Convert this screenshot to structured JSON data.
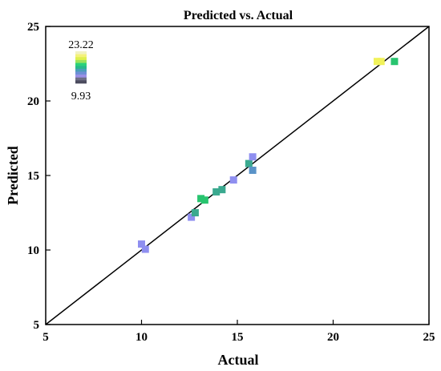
{
  "chart_data": {
    "type": "scatter",
    "title": "Predicted vs. Actual",
    "xlabel": "Actual",
    "ylabel": "Predicted",
    "xlim": [
      5,
      25
    ],
    "ylim": [
      5,
      25
    ],
    "xticks": [
      "5",
      "10",
      "15",
      "20",
      "25"
    ],
    "yticks": [
      "5",
      "10",
      "15",
      "20",
      "25"
    ],
    "reference_line": {
      "from": [
        5,
        5
      ],
      "to": [
        25,
        25
      ],
      "color": "#000000"
    },
    "legend": {
      "placement": "top-left",
      "type": "color-scale",
      "max_label": "23.22",
      "min_label": "9.93",
      "colors": [
        "#f2f2c2",
        "#f4f27a",
        "#dff04d",
        "#9be35c",
        "#2ad27a",
        "#27b98a",
        "#4a9fb8",
        "#6e8fd6",
        "#9a8fe6",
        "#6e6e86",
        "#4b4b5e"
      ]
    },
    "points": [
      {
        "x": 10.0,
        "y": 10.4,
        "color": "#8f8ff0"
      },
      {
        "x": 10.2,
        "y": 10.05,
        "color": "#8f8ff0"
      },
      {
        "x": 12.6,
        "y": 12.2,
        "color": "#8f8ff0"
      },
      {
        "x": 12.8,
        "y": 12.5,
        "color": "#3aa98f"
      },
      {
        "x": 13.1,
        "y": 13.45,
        "color": "#28c46f"
      },
      {
        "x": 13.3,
        "y": 13.35,
        "color": "#28c46f"
      },
      {
        "x": 13.9,
        "y": 13.9,
        "color": "#3aa98f"
      },
      {
        "x": 14.2,
        "y": 14.05,
        "color": "#3aa98f"
      },
      {
        "x": 14.8,
        "y": 14.7,
        "color": "#8f8ff0"
      },
      {
        "x": 15.6,
        "y": 15.8,
        "color": "#3aa98f"
      },
      {
        "x": 15.8,
        "y": 16.25,
        "color": "#8f8ff0"
      },
      {
        "x": 15.8,
        "y": 15.35,
        "color": "#5a93c8"
      },
      {
        "x": 22.3,
        "y": 22.65,
        "color": "#f1f25a"
      },
      {
        "x": 22.5,
        "y": 22.65,
        "color": "#f1f25a"
      },
      {
        "x": 23.2,
        "y": 22.65,
        "color": "#28c46f"
      }
    ]
  }
}
